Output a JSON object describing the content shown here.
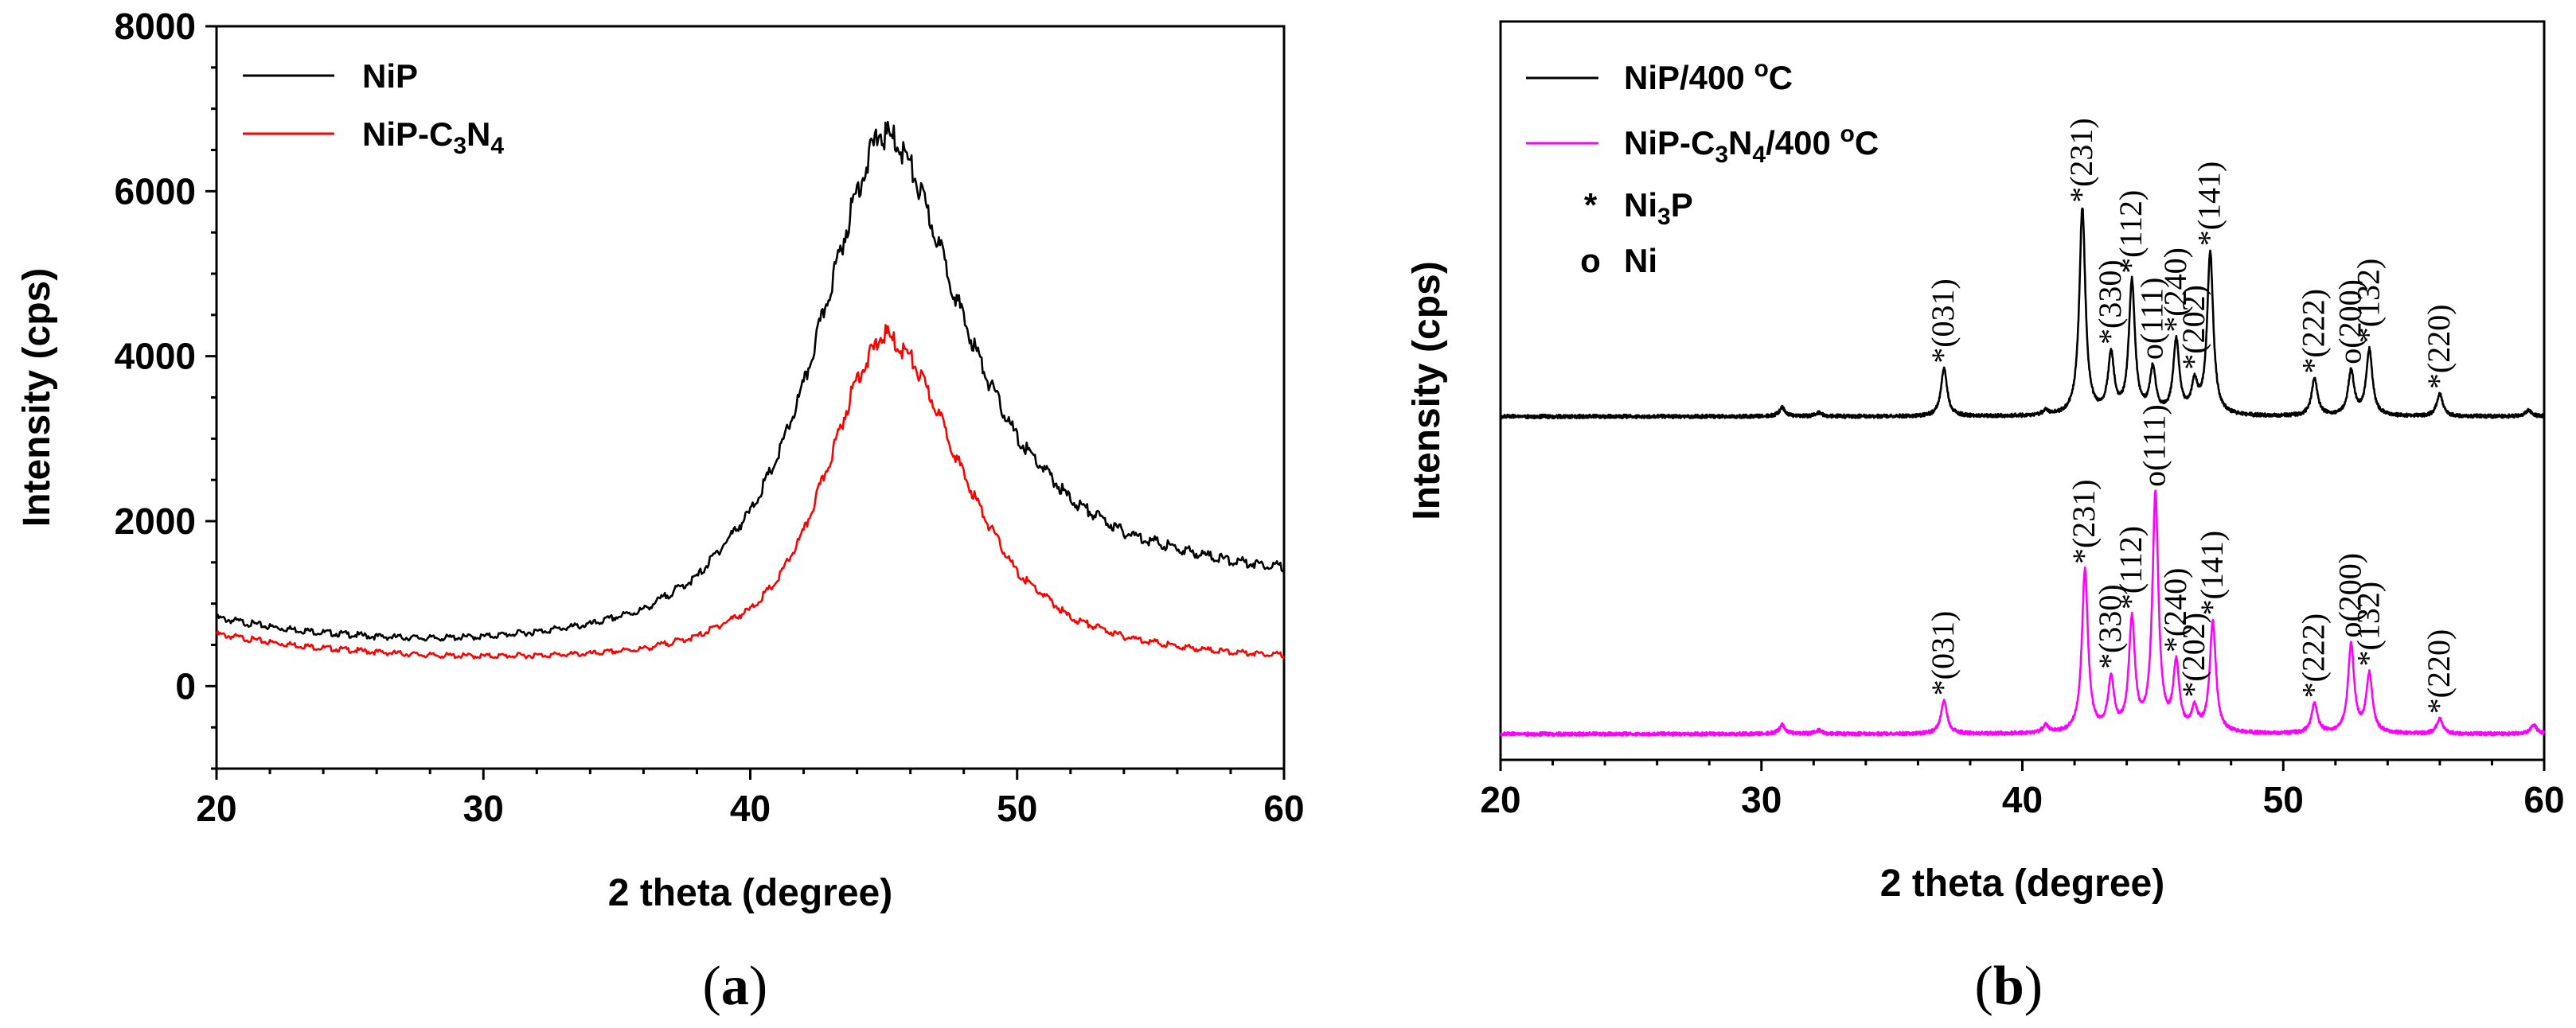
{
  "chart_data": [
    {
      "type": "line",
      "panel_label": "a",
      "xlabel": "2 theta (degree)",
      "ylabel": "Intensity (cps)",
      "xlim": [
        20,
        60
      ],
      "ylim": [
        -1000,
        8000
      ],
      "xticks": [
        20,
        30,
        40,
        50,
        60
      ],
      "yticks": [
        0,
        2000,
        4000,
        6000,
        8000
      ],
      "legend": {
        "position": "top-left",
        "entries": [
          {
            "label": "NiP",
            "color": "#000000"
          },
          {
            "label_parts": [
              {
                "t": "NiP-C",
                "s": false
              },
              {
                "t": "3",
                "s": true
              },
              {
                "t": "N",
                "s": false
              },
              {
                "t": "4",
                "s": true
              }
            ],
            "color": "#ff0000"
          }
        ]
      },
      "series": [
        {
          "name": "NiP",
          "color": "#000000",
          "x": [
            20,
            22,
            24,
            26,
            28,
            30,
            32,
            34,
            36,
            38,
            40,
            41,
            42,
            43,
            44,
            44.8,
            45.5,
            46,
            47,
            48,
            49,
            50,
            52,
            54,
            56,
            58,
            60
          ],
          "y": [
            850,
            740,
            670,
            620,
            600,
            620,
            680,
            770,
            950,
            1350,
            2150,
            2800,
            3700,
            4900,
            6100,
            6800,
            6700,
            6400,
            5500,
            4500,
            3700,
            3050,
            2300,
            1900,
            1700,
            1550,
            1480
          ]
        },
        {
          "name": "NiP-C3N4",
          "color": "#ff0000",
          "x": [
            20,
            22,
            24,
            26,
            28,
            30,
            32,
            34,
            36,
            38,
            40,
            41,
            42,
            43,
            44,
            45,
            46,
            47,
            48,
            49,
            50,
            52,
            54,
            56,
            58,
            60
          ],
          "y": [
            650,
            550,
            480,
            430,
            390,
            380,
            390,
            410,
            470,
            620,
            950,
            1300,
            1900,
            2800,
            3800,
            4350,
            4050,
            3400,
            2600,
            1950,
            1400,
            850,
            620,
            500,
            430,
            400
          ]
        }
      ]
    },
    {
      "type": "line",
      "panel_label": "b",
      "xlabel": "2 theta (degree)",
      "ylabel": "Intensity (cps)",
      "xlim": [
        20,
        60
      ],
      "ylim": [
        0,
        100
      ],
      "xticks": [
        20,
        30,
        40,
        50,
        60
      ],
      "legend": {
        "position": "top-left",
        "entries": [
          {
            "label_parts": [
              {
                "t": "NiP/400 ",
                "s": false
              },
              {
                "t": "o",
                "p": true
              },
              {
                "t": "C",
                "s": false
              }
            ],
            "color": "#000000"
          },
          {
            "label_parts": [
              {
                "t": "NiP-C",
                "s": false
              },
              {
                "t": "3",
                "s": true
              },
              {
                "t": "N",
                "s": false
              },
              {
                "t": "4",
                "s": true
              },
              {
                "t": "/400 ",
                "s": false
              },
              {
                "t": "o",
                "p": true
              },
              {
                "t": "C",
                "s": false
              }
            ],
            "color": "#ff00ff"
          }
        ],
        "markers": [
          {
            "symbol": "*",
            "label_parts": [
              {
                "t": "Ni",
                "s": false
              },
              {
                "t": "3",
                "s": true
              },
              {
                "t": "P",
                "s": false
              }
            ]
          },
          {
            "symbol": "o",
            "label_parts": [
              {
                "t": "Ni",
                "s": false
              }
            ]
          }
        ]
      },
      "series": [
        {
          "name": "NiP/400 oC",
          "color": "#000000",
          "baseline": 46.5,
          "scale": 1.0,
          "peaks": [
            [
              30.8,
              1.2
            ],
            [
              32.2,
              0.5
            ],
            [
              37.0,
              6.5
            ],
            [
              40.9,
              0.6
            ],
            [
              42.3,
              28
            ],
            [
              43.4,
              8
            ],
            [
              44.2,
              18
            ],
            [
              45.0,
              6
            ],
            [
              45.9,
              10
            ],
            [
              46.6,
              4
            ],
            [
              47.2,
              22
            ],
            [
              51.2,
              5
            ],
            [
              52.6,
              6
            ],
            [
              53.3,
              9
            ],
            [
              56.0,
              3
            ],
            [
              59.4,
              0.8
            ]
          ]
        },
        {
          "name": "NiP-C3N4/400 oC",
          "color": "#ff00ff",
          "baseline": 3.5,
          "scale": 1.0,
          "peaks": [
            [
              30.8,
              1.2
            ],
            [
              32.2,
              0.5
            ],
            [
              37.0,
              4.5
            ],
            [
              40.9,
              1
            ],
            [
              42.4,
              22
            ],
            [
              43.4,
              7
            ],
            [
              44.2,
              15
            ],
            [
              45.1,
              32
            ],
            [
              45.9,
              9
            ],
            [
              46.6,
              3
            ],
            [
              47.3,
              15
            ],
            [
              51.2,
              4
            ],
            [
              52.6,
              12
            ],
            [
              53.3,
              8
            ],
            [
              56.0,
              2
            ],
            [
              59.6,
              1.2
            ]
          ]
        }
      ],
      "annotations": [
        {
          "x": 37.0,
          "series": 0,
          "text": "*(031)"
        },
        {
          "x": 42.3,
          "series": 0,
          "text": "*(231)"
        },
        {
          "x": 43.4,
          "series": 0,
          "text": "*(330)"
        },
        {
          "x": 44.2,
          "series": 0,
          "text": "*(112)"
        },
        {
          "x": 45.0,
          "series": 0,
          "text": "o(111)"
        },
        {
          "x": 45.9,
          "series": 0,
          "text": "*(240)"
        },
        {
          "x": 46.6,
          "series": 0,
          "text": "*(202)"
        },
        {
          "x": 47.2,
          "series": 0,
          "text": "*(141)"
        },
        {
          "x": 51.2,
          "series": 0,
          "text": "*(222)"
        },
        {
          "x": 52.6,
          "series": 0,
          "text": "o(200)"
        },
        {
          "x": 53.3,
          "series": 0,
          "text": "*(132)"
        },
        {
          "x": 56.0,
          "series": 0,
          "text": "*(220)"
        },
        {
          "x": 37.0,
          "series": 1,
          "text": "*(031)"
        },
        {
          "x": 42.4,
          "series": 1,
          "text": "*(231)"
        },
        {
          "x": 43.4,
          "series": 1,
          "text": "*(330)"
        },
        {
          "x": 44.2,
          "series": 1,
          "text": "*(112)"
        },
        {
          "x": 45.1,
          "series": 1,
          "text": "o(111)"
        },
        {
          "x": 45.9,
          "series": 1,
          "text": "*(240)"
        },
        {
          "x": 46.6,
          "series": 1,
          "text": "*(202)"
        },
        {
          "x": 47.3,
          "series": 1,
          "text": "*(141)"
        },
        {
          "x": 51.2,
          "series": 1,
          "text": "*(222)"
        },
        {
          "x": 52.6,
          "series": 1,
          "text": "o(200)"
        },
        {
          "x": 53.3,
          "series": 1,
          "text": "*(132)"
        },
        {
          "x": 56.0,
          "series": 1,
          "text": "*(220)"
        }
      ]
    }
  ]
}
